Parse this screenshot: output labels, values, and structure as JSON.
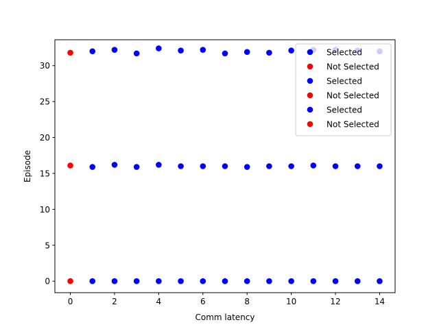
{
  "chart_data": {
    "type": "scatter",
    "xlabel": "Comm latency",
    "ylabel": "Episode",
    "xlim": [
      -0.7,
      14.7
    ],
    "ylim": [
      -1.6,
      33.6
    ],
    "xticks": [
      0,
      2,
      4,
      6,
      8,
      10,
      12,
      14
    ],
    "yticks": [
      0,
      5,
      10,
      15,
      20,
      25,
      30
    ],
    "grid": false,
    "legend_position": "top-right",
    "series": [
      {
        "name": "Selected",
        "color": "#0000ff",
        "points": [
          [
            1,
            0
          ],
          [
            2,
            0
          ],
          [
            3,
            0
          ],
          [
            4,
            0
          ],
          [
            5,
            0
          ],
          [
            6,
            0
          ],
          [
            7,
            0
          ],
          [
            8,
            0
          ],
          [
            9,
            0
          ],
          [
            10,
            0
          ],
          [
            11,
            0
          ],
          [
            12,
            0
          ],
          [
            13,
            0
          ],
          [
            14,
            0
          ]
        ]
      },
      {
        "name": "Not Selected",
        "color": "#ff0000",
        "points": [
          [
            0,
            0
          ]
        ]
      },
      {
        "name": "Selected",
        "color": "#0000ff",
        "points": [
          [
            1,
            15.9
          ],
          [
            2,
            16.2
          ],
          [
            3,
            15.9
          ],
          [
            4,
            16.2
          ],
          [
            5,
            16.0
          ],
          [
            6,
            16.0
          ],
          [
            7,
            16.0
          ],
          [
            8,
            15.9
          ],
          [
            9,
            16.0
          ],
          [
            10,
            16.0
          ],
          [
            11,
            16.1
          ],
          [
            12,
            16.0
          ],
          [
            13,
            16.0
          ],
          [
            14,
            16.0
          ]
        ]
      },
      {
        "name": "Not Selected",
        "color": "#ff0000",
        "points": [
          [
            0,
            16.1
          ]
        ]
      },
      {
        "name": "Selected",
        "color": "#0000ff",
        "points": [
          [
            1,
            32.0
          ],
          [
            2,
            32.2
          ],
          [
            3,
            31.7
          ],
          [
            4,
            32.4
          ],
          [
            5,
            32.1
          ],
          [
            6,
            32.2
          ],
          [
            7,
            31.7
          ],
          [
            8,
            31.9
          ],
          [
            9,
            31.8
          ],
          [
            10,
            32.1
          ],
          [
            11,
            32.2
          ],
          [
            12,
            32.2
          ],
          [
            13,
            32.1
          ],
          [
            14,
            32.0
          ]
        ]
      },
      {
        "name": "Not Selected",
        "color": "#ff0000",
        "points": [
          [
            0,
            31.8
          ]
        ]
      }
    ]
  }
}
